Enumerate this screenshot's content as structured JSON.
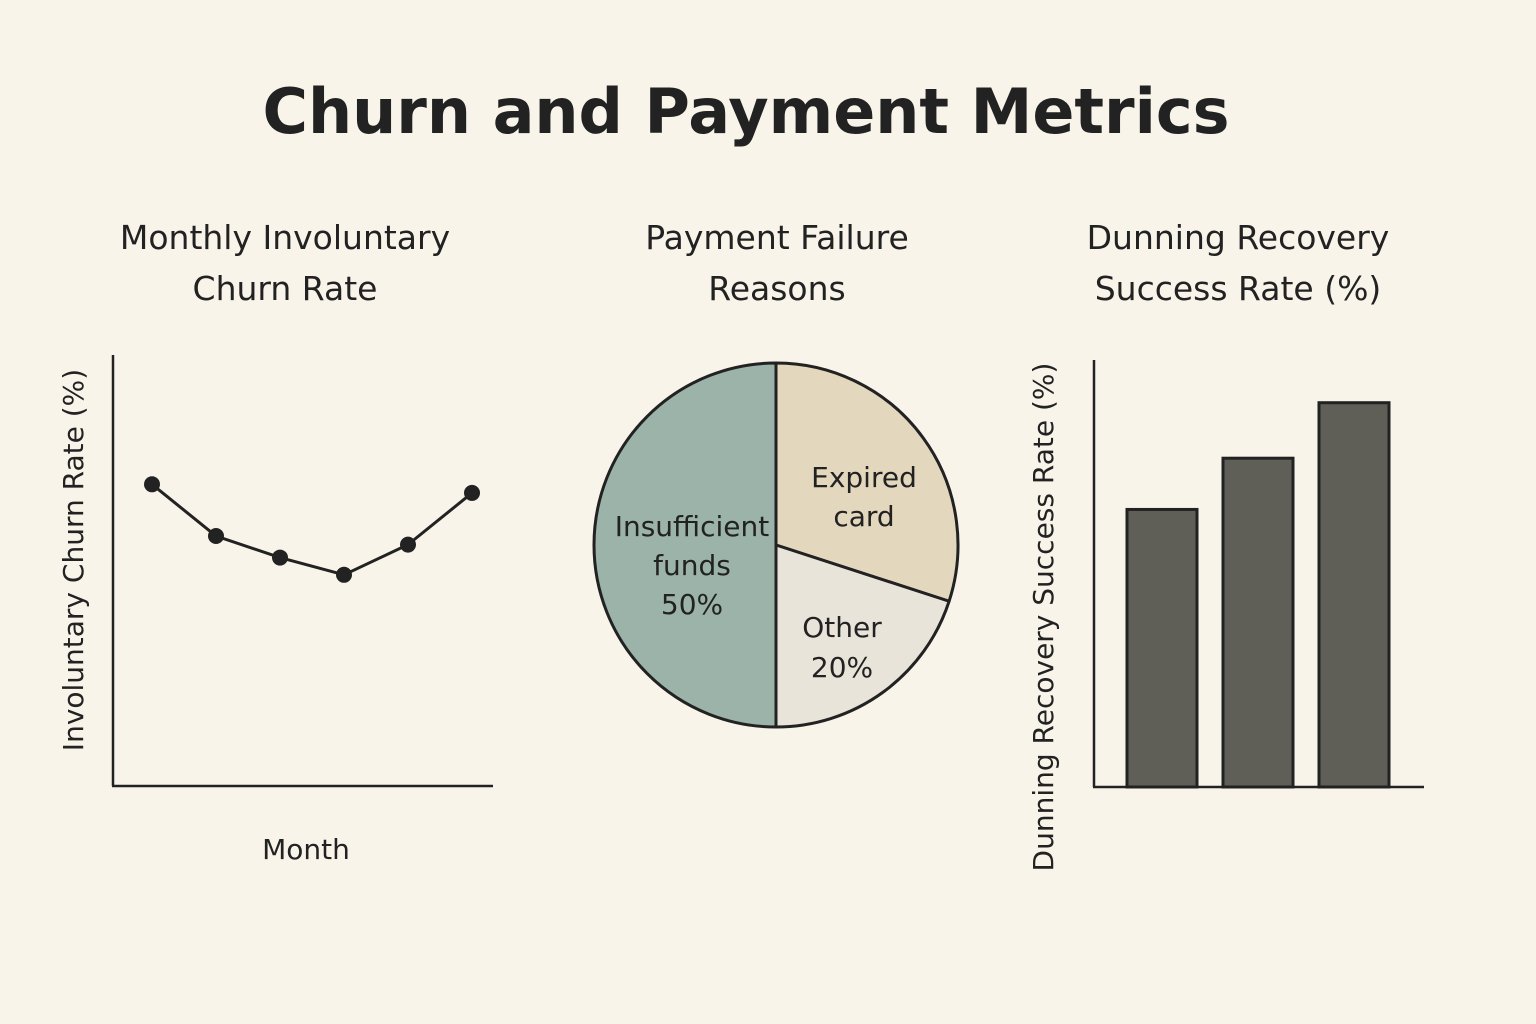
{
  "title": "Churn and Payment Metrics",
  "colors": {
    "background": "#f8f4ea",
    "ink": "#222222",
    "bars": "#5f5f58"
  },
  "chart_data": [
    {
      "type": "line",
      "title_lines": [
        "Monthly Involuntary",
        "Churn Rate"
      ],
      "xlabel": "Month",
      "ylabel": "Involuntary Churn Rate (%)",
      "x": [
        1,
        2,
        3,
        4,
        5,
        6
      ],
      "y": [
        0.7,
        0.58,
        0.53,
        0.49,
        0.56,
        0.68
      ],
      "ylim": [
        0,
        1
      ],
      "grid": false,
      "ticks": false
    },
    {
      "type": "pie",
      "title_lines": [
        "Payment Failure",
        "Reasons"
      ],
      "slices": [
        {
          "label_lines": [
            "Expired",
            "card"
          ],
          "value": 30,
          "color": "#e3d7bd"
        },
        {
          "label_lines": [
            "Other",
            "20%"
          ],
          "value": 20,
          "color": "#e9e4d9"
        },
        {
          "label_lines": [
            "Insufficient",
            "funds",
            "50%"
          ],
          "value": 50,
          "color": "#9bb3a8"
        }
      ]
    },
    {
      "type": "bar",
      "title_lines": [
        "Dunning Recovery",
        "Success Rate (%)"
      ],
      "ylabel": "Dunning Recovery Success Rate (%)",
      "values": [
        65,
        77,
        90
      ],
      "ylim": [
        0,
        100
      ],
      "grid": false,
      "ticks": false
    }
  ]
}
